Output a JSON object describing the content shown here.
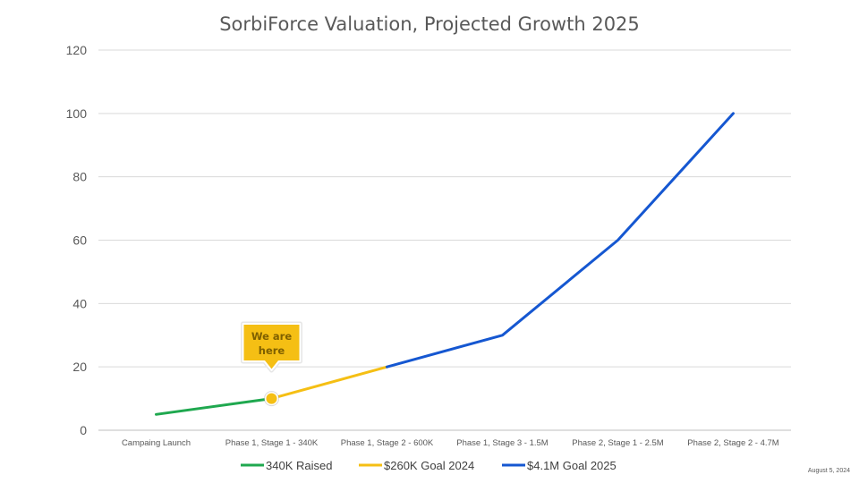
{
  "chart_data": {
    "type": "line",
    "title": "SorbiForce Valuation, Projected Growth 2025",
    "xlabel": "",
    "ylabel": "",
    "ylim": [
      0,
      120
    ],
    "yticks": [
      0,
      20,
      40,
      60,
      80,
      100,
      120
    ],
    "grid": true,
    "legend_position": "bottom",
    "categories": [
      "Campaing Launch",
      "Phase 1, Stage 1 - 340K",
      "Phase 1, Stage 2 - 600K",
      "Phase 1, Stage 3 - 1.5M",
      "Phase 2, Stage 1 - 2.5M",
      "Phase 2, Stage 2 - 4.7M"
    ],
    "series": [
      {
        "name": "340K Raised",
        "color": "#1fa84f",
        "values": [
          5,
          10,
          null,
          null,
          null,
          null
        ]
      },
      {
        "name": "$260K Goal 2024",
        "color": "#f5bf14",
        "values": [
          null,
          10,
          20,
          null,
          null,
          null
        ]
      },
      {
        "name": "$4.1M Goal 2025",
        "color": "#1557d1",
        "values": [
          null,
          null,
          20,
          30,
          60,
          100
        ]
      }
    ],
    "annotation": {
      "line1": "We are",
      "line2": "here",
      "category_index": 1,
      "value": 10,
      "color": "#f5bf14"
    }
  },
  "footer": {
    "date": "August 5, 2024"
  }
}
